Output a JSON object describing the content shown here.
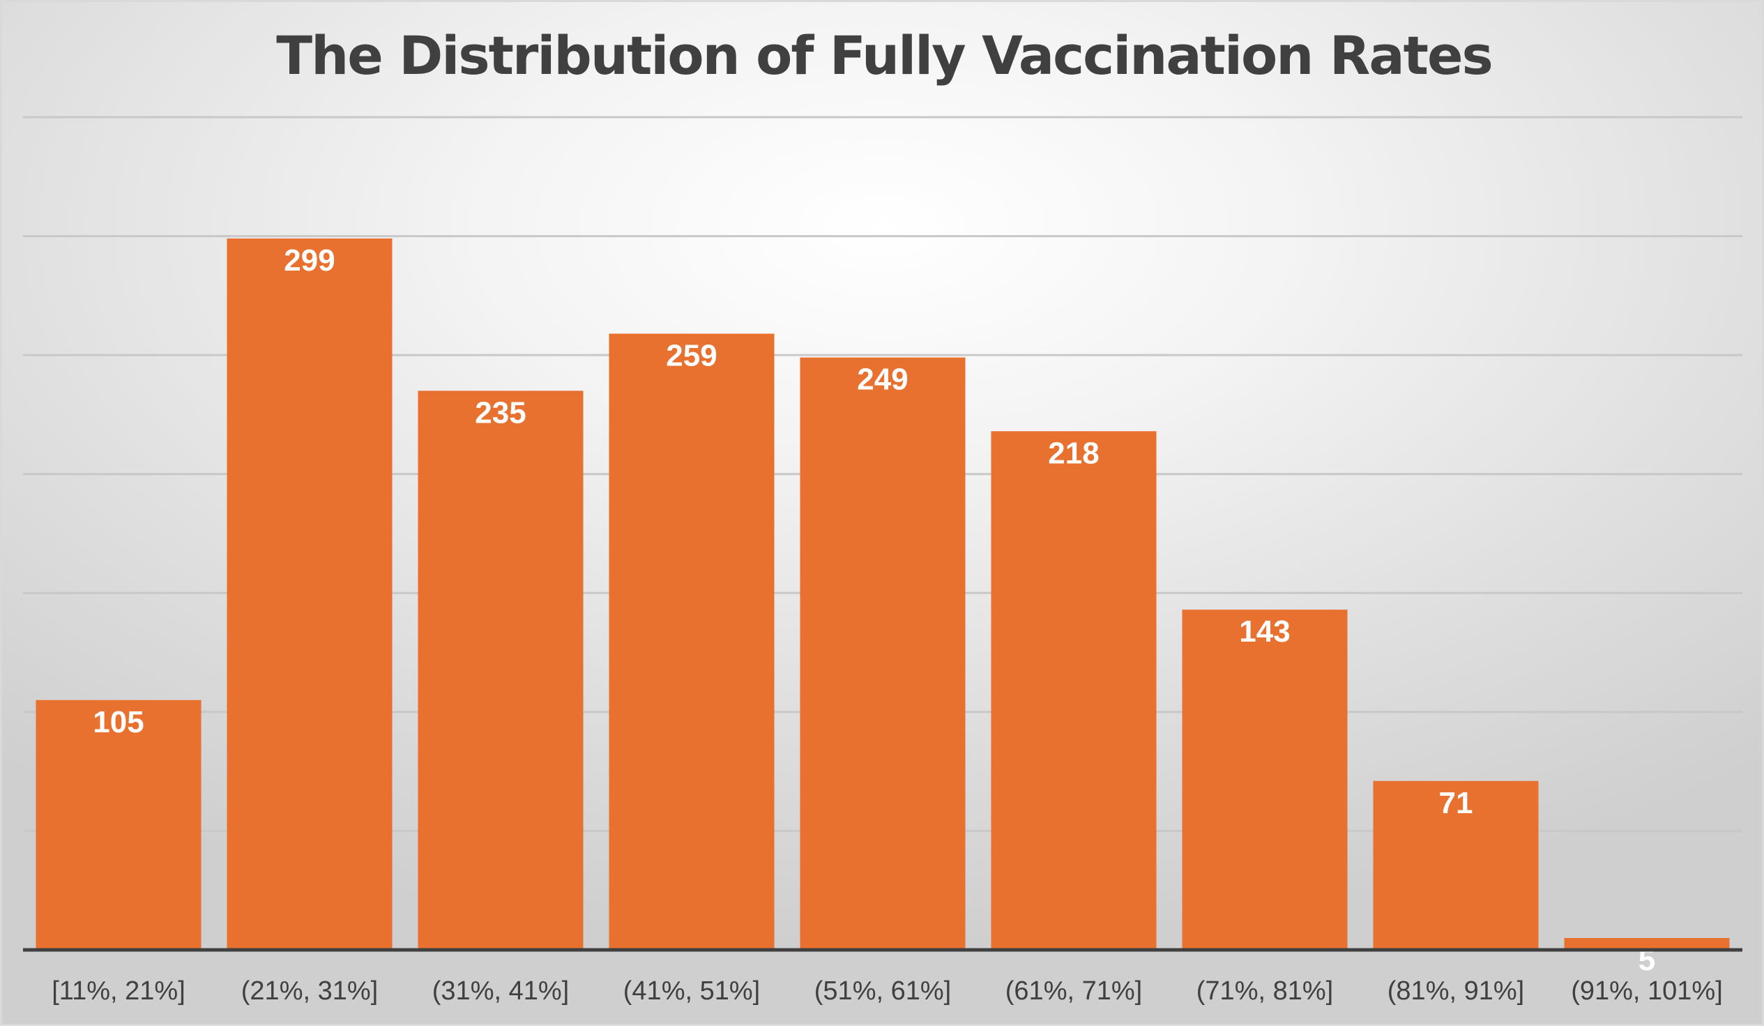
{
  "chart_data": {
    "type": "bar",
    "title": "The Distribution of Fully Vaccination Rates",
    "xlabel": "",
    "ylabel": "",
    "categories": [
      "[11%, 21%]",
      "(21%, 31%]",
      "(31%, 41%]",
      "(41%, 51%]",
      "(51%, 61%]",
      "(61%, 71%]",
      "(71%, 81%]",
      "(81%, 91%]",
      "(91%, 101%]"
    ],
    "values": [
      105,
      299,
      235,
      259,
      249,
      218,
      143,
      71,
      5
    ],
    "ylim": [
      0,
      350
    ],
    "grid_step": 50,
    "grid": true,
    "data_labels": true,
    "legend": "none",
    "bar_color": "#E9712F",
    "label_color": "#FFFFFF"
  }
}
